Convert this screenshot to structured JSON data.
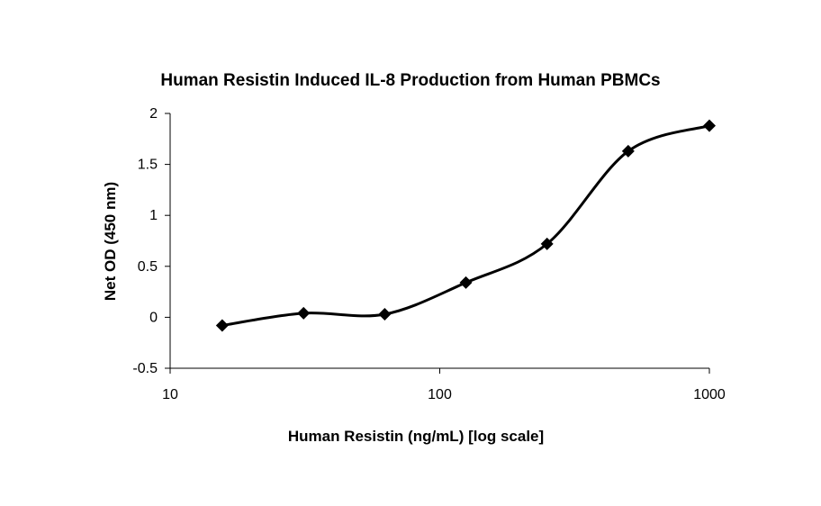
{
  "chart_data": {
    "type": "line",
    "title": "Human Resistin Induced IL-8 Production from Human PBMCs",
    "xlabel": "Human Resistin (ng/mL) [log scale]",
    "ylabel": "Net OD (450 nm)",
    "x_scale": "log",
    "xlim": [
      10,
      1000
    ],
    "ylim": [
      -0.5,
      2
    ],
    "x_ticks": [
      10,
      100,
      1000
    ],
    "x_tick_labels": [
      "10",
      "100",
      "1000"
    ],
    "y_ticks": [
      -0.5,
      0,
      0.5,
      1,
      1.5,
      2
    ],
    "y_tick_labels": [
      "-0.5",
      "0",
      "0.5",
      "1",
      "1.5",
      "2"
    ],
    "grid": false,
    "legend": "none",
    "marker": "diamond",
    "line_color": "#000000",
    "series": [
      {
        "x": [
          15.6,
          31.25,
          62.5,
          125,
          250,
          500,
          1000
        ],
        "y": [
          -0.08,
          0.04,
          0.03,
          0.34,
          0.72,
          1.63,
          1.88
        ]
      }
    ]
  }
}
